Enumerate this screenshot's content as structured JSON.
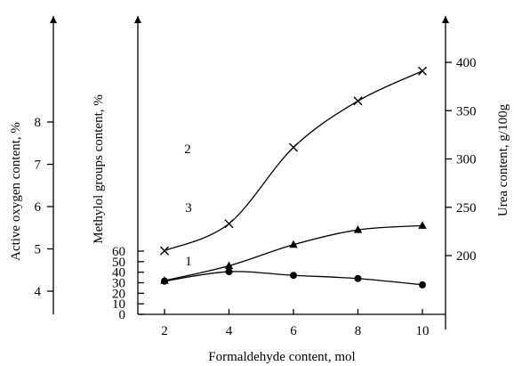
{
  "chart_data": {
    "type": "line",
    "x": [
      2,
      4,
      6,
      8,
      10
    ],
    "xlabel": "Formaldehyde content, mol",
    "xlim": [
      2,
      10
    ],
    "x_ticks": [
      "2",
      "4",
      "6",
      "8",
      "10"
    ],
    "axes": {
      "oxygen": {
        "label": "Active oxygen content, %",
        "ticks": [
          "4",
          "5",
          "6",
          "7",
          "8"
        ],
        "tick_values": [
          4,
          5,
          6,
          7,
          8
        ]
      },
      "methylol": {
        "label": "Methylol groups content, %",
        "ylim": [
          0,
          60
        ],
        "ticks": [
          "0",
          "10",
          "20",
          "30",
          "40",
          "50",
          "60"
        ],
        "tick_values": [
          0,
          10,
          20,
          30,
          40,
          50,
          60
        ]
      },
      "urea": {
        "label": "Urea content, g/100g",
        "ylim": [
          200,
          400
        ],
        "ticks": [
          "200",
          "250",
          "300",
          "350",
          "400"
        ],
        "tick_values": [
          200,
          250,
          300,
          350,
          400
        ]
      }
    },
    "series": [
      {
        "name": "1",
        "axis": "oxygen",
        "marker": "triangle",
        "values": [
          4.25,
          4.6,
          5.1,
          5.45,
          5.55
        ]
      },
      {
        "name": "2",
        "axis": "methylol",
        "marker": "circle",
        "values": [
          31.5,
          40.5,
          37,
          34,
          28
        ]
      },
      {
        "name": "3",
        "axis": "urea",
        "marker": "cross",
        "values": [
          205,
          233,
          312,
          360,
          391
        ]
      }
    ],
    "grid": false,
    "legend": "inline curve labels"
  }
}
